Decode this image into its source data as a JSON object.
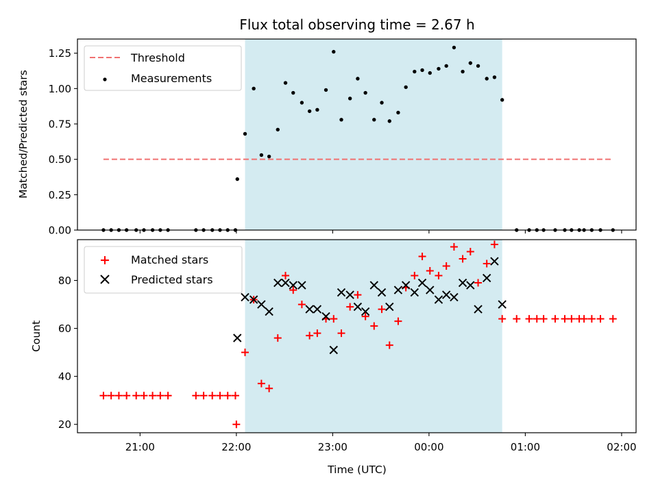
{
  "chart_data": {
    "title": "Flux total observing time = 2.67 h",
    "x_unit": "hours since 21:00 UTC on the plot's first day",
    "highlight_span": {
      "start": 22.09,
      "end": 24.76,
      "color": "#d4ebf1"
    },
    "x_ticks": [
      {
        "x": 21,
        "label": "21:00"
      },
      {
        "x": 22,
        "label": "22:00"
      },
      {
        "x": 23,
        "label": "23:00"
      },
      {
        "x": 24,
        "label": "00:00"
      },
      {
        "x": 25,
        "label": "01:00"
      },
      {
        "x": 26,
        "label": "02:00"
      }
    ],
    "xlim": [
      20.35,
      26.15
    ],
    "xlabel": "Time (UTC)",
    "top": {
      "type": "scatter",
      "ylabel": "Matched/Predicted stars",
      "ylim": [
        0,
        1.35
      ],
      "y_ticks": [
        "0.00",
        "0.25",
        "0.50",
        "0.75",
        "1.00",
        "1.25"
      ],
      "legend": {
        "position": "top-left",
        "threshold_label": "Threshold",
        "measure_label": "Measurements"
      },
      "threshold": {
        "x": [
          20.62,
          25.91
        ],
        "y": 0.5,
        "color": "#f07070"
      },
      "measurements": {
        "color": "#000000",
        "x": [
          20.62,
          20.7,
          20.78,
          20.86,
          20.96,
          21.04,
          21.13,
          21.21,
          21.29,
          21.58,
          21.66,
          21.75,
          21.83,
          21.91,
          21.99,
          22.01,
          22.09,
          22.18,
          22.26,
          22.34,
          22.43,
          22.51,
          22.59,
          22.68,
          22.76,
          22.84,
          22.93,
          23.01,
          23.09,
          23.18,
          23.26,
          23.34,
          23.43,
          23.51,
          23.59,
          23.68,
          23.76,
          23.85,
          23.93,
          24.01,
          24.1,
          24.18,
          24.26,
          24.35,
          24.43,
          24.51,
          24.6,
          24.68,
          24.76,
          24.91,
          25.04,
          25.12,
          25.19,
          25.31,
          25.41,
          25.48,
          25.56,
          25.61,
          25.69,
          25.78,
          25.91
        ],
        "y": [
          0,
          0,
          0,
          0,
          0,
          0,
          0,
          0,
          0,
          0,
          0,
          0,
          0,
          0,
          0,
          0.36,
          0.68,
          1.0,
          0.53,
          0.52,
          0.71,
          1.04,
          0.97,
          0.9,
          0.84,
          0.85,
          0.99,
          1.26,
          0.78,
          0.93,
          1.07,
          0.97,
          0.78,
          0.9,
          0.77,
          0.83,
          1.01,
          1.12,
          1.13,
          1.11,
          1.14,
          1.16,
          1.29,
          1.12,
          1.18,
          1.16,
          1.07,
          1.08,
          0.92,
          0,
          0,
          0,
          0,
          0,
          0,
          0,
          0,
          0,
          0,
          0,
          0
        ]
      }
    },
    "bottom": {
      "type": "scatter",
      "ylabel": "Count",
      "ylim": [
        16.5,
        97
      ],
      "y_ticks": [
        "20",
        "40",
        "60",
        "80"
      ],
      "legend": {
        "position": "top-left",
        "matched_label": "Matched stars",
        "predicted_label": "Predicted stars"
      },
      "matched": {
        "color": "#ff0000",
        "x": [
          20.62,
          20.7,
          20.78,
          20.86,
          20.96,
          21.04,
          21.13,
          21.21,
          21.29,
          21.58,
          21.66,
          21.75,
          21.83,
          21.91,
          21.99,
          22.0,
          22.09,
          22.18,
          22.26,
          22.34,
          22.43,
          22.51,
          22.59,
          22.68,
          22.76,
          22.84,
          22.93,
          23.01,
          23.09,
          23.18,
          23.26,
          23.34,
          23.43,
          23.51,
          23.59,
          23.68,
          23.76,
          23.85,
          23.93,
          24.01,
          24.1,
          24.18,
          24.26,
          24.35,
          24.43,
          24.51,
          24.6,
          24.68,
          24.76,
          24.91,
          25.04,
          25.12,
          25.19,
          25.31,
          25.41,
          25.48,
          25.56,
          25.61,
          25.69,
          25.78,
          25.91
        ],
        "y": [
          32,
          32,
          32,
          32,
          32,
          32,
          32,
          32,
          32,
          32,
          32,
          32,
          32,
          32,
          32,
          20,
          50,
          72,
          37,
          35,
          56,
          82,
          76,
          70,
          57,
          58,
          64,
          64,
          58,
          69,
          74,
          65,
          61,
          68,
          53,
          63,
          77,
          82,
          90,
          84,
          82,
          86,
          94,
          89,
          92,
          79,
          87,
          95,
          64,
          64,
          64,
          64,
          64,
          64,
          64,
          64,
          64,
          64,
          64,
          64,
          64
        ]
      },
      "predicted": {
        "color": "#000000",
        "x": [
          22.01,
          22.09,
          22.18,
          22.26,
          22.34,
          22.43,
          22.51,
          22.59,
          22.68,
          22.76,
          22.84,
          22.93,
          23.01,
          23.09,
          23.18,
          23.26,
          23.34,
          23.43,
          23.51,
          23.59,
          23.68,
          23.76,
          23.85,
          23.93,
          24.01,
          24.1,
          24.18,
          24.26,
          24.35,
          24.43,
          24.51,
          24.6,
          24.68,
          24.76
        ],
        "y": [
          56,
          73,
          72,
          70,
          67,
          79,
          79,
          78,
          78,
          68,
          68,
          65,
          51,
          75,
          74,
          69,
          67,
          78,
          75,
          69,
          76,
          78,
          75,
          79,
          76,
          72,
          74,
          73,
          79,
          78,
          68,
          81,
          88,
          70
        ]
      }
    }
  }
}
